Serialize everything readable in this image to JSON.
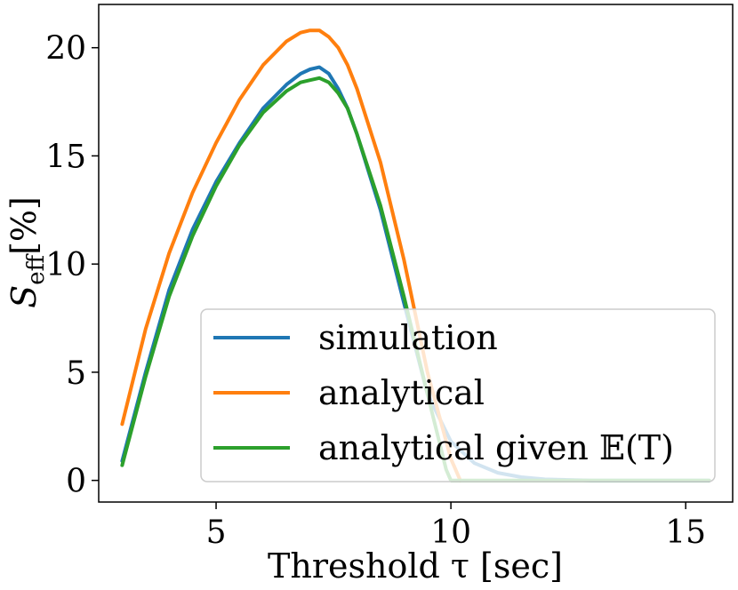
{
  "chart_data": {
    "type": "line",
    "xlabel": "Threshold τ [sec]",
    "ylabel": "S_eff[%]",
    "ylabel_main": "S",
    "ylabel_sub": "eff",
    "ylabel_rest": "[%]",
    "xlim": [
      2.5,
      16.0
    ],
    "ylim": [
      -1.0,
      22.0
    ],
    "xticks": [
      5,
      10,
      15
    ],
    "xtick_labels": [
      "5",
      "10",
      "15"
    ],
    "yticks": [
      0,
      5,
      10,
      15,
      20
    ],
    "ytick_labels": [
      "0",
      "5",
      "10",
      "15",
      "20"
    ],
    "grid": false,
    "legend_position": "lower-right",
    "series": [
      {
        "name": "simulation",
        "color": "#1f77b4",
        "x": [
          3.0,
          3.5,
          4.0,
          4.5,
          5.0,
          5.5,
          6.0,
          6.5,
          6.8,
          7.0,
          7.2,
          7.4,
          7.6,
          7.8,
          8.0,
          8.5,
          9.0,
          9.5,
          10.0,
          10.5,
          11.0,
          11.5,
          12.0,
          13.0,
          14.0,
          15.5
        ],
        "y": [
          0.9,
          5.0,
          8.8,
          11.6,
          13.8,
          15.6,
          17.2,
          18.3,
          18.8,
          19.0,
          19.1,
          18.8,
          18.1,
          17.2,
          16.0,
          12.5,
          8.2,
          4.0,
          1.8,
          0.8,
          0.35,
          0.15,
          0.05,
          0.0,
          0.0,
          0.0
        ]
      },
      {
        "name": "analytical",
        "color": "#ff7f0e",
        "x": [
          3.0,
          3.5,
          4.0,
          4.5,
          5.0,
          5.5,
          6.0,
          6.5,
          6.8,
          7.0,
          7.2,
          7.4,
          7.6,
          7.8,
          8.0,
          8.5,
          9.0,
          9.5,
          10.0,
          10.2
        ],
        "y": [
          2.6,
          7.0,
          10.5,
          13.3,
          15.6,
          17.6,
          19.2,
          20.3,
          20.7,
          20.8,
          20.8,
          20.5,
          20.0,
          19.2,
          18.1,
          14.7,
          10.2,
          5.0,
          1.0,
          0.0
        ]
      },
      {
        "name": "analytical given 𝔼(T)",
        "color": "#2ca02c",
        "x": [
          3.0,
          3.5,
          4.0,
          4.5,
          5.0,
          5.5,
          6.0,
          6.5,
          6.8,
          7.0,
          7.2,
          7.4,
          7.6,
          7.8,
          8.0,
          8.5,
          9.0,
          9.5,
          9.9,
          10.0,
          11.0,
          12.0,
          13.0,
          14.0,
          15.5
        ],
        "y": [
          0.7,
          4.8,
          8.5,
          11.3,
          13.6,
          15.5,
          17.0,
          18.0,
          18.4,
          18.5,
          18.6,
          18.4,
          17.9,
          17.2,
          16.0,
          12.7,
          8.5,
          4.0,
          0.5,
          0.0,
          0.0,
          0.0,
          0.0,
          0.0,
          0.0
        ]
      }
    ]
  }
}
